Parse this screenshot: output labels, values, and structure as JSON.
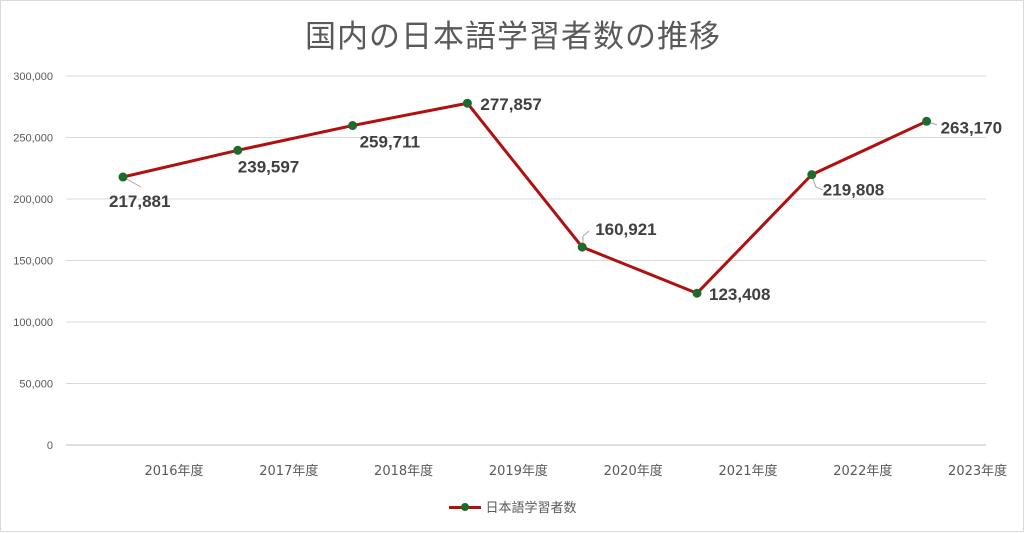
{
  "chart_data": {
    "type": "line",
    "title": "国内の日本語学習者数の推移",
    "categories": [
      "2016年度",
      "2017年度",
      "2018年度",
      "2019年度",
      "2020年度",
      "2021年度",
      "2022年度",
      "2023年度"
    ],
    "series": [
      {
        "name": "日本語学習者数",
        "values": [
          217881,
          239597,
          259711,
          277857,
          160921,
          123408,
          219808,
          263170
        ],
        "labels": [
          "217,881",
          "239,597",
          "259,711",
          "277,857",
          "160,921",
          "123,408",
          "219,808",
          "263,170"
        ],
        "line_color": "#b01010",
        "marker_color": "#1e6b2e"
      }
    ],
    "yticks": [
      "0",
      "50,000",
      "100,000",
      "150,000",
      "200,000",
      "250,000",
      "300,000"
    ],
    "ylim": [
      0,
      300000
    ],
    "grid": true,
    "legend": "bottom"
  }
}
